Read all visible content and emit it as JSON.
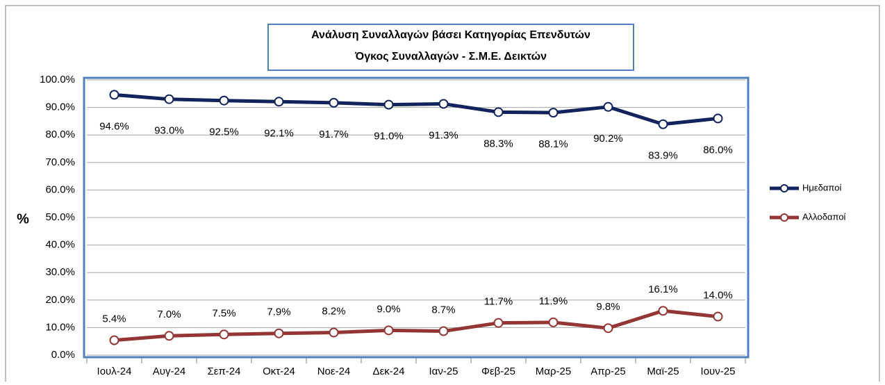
{
  "chart_data": {
    "type": "line",
    "title": "Ανάλυση Συναλλαγών βάσει Κατηγορίας Επενδυτών",
    "subtitle": "Όγκος Συναλλαγών - Σ.Μ.Ε. Δεικτών",
    "y_label": "%",
    "categories": [
      "Ιουλ-24",
      "Αυγ-24",
      "Σεπ-24",
      "Οκτ-24",
      "Νοε-24",
      "Δεκ-24",
      "Ιαν-25",
      "Φεβ-25",
      "Μαρ-25",
      "Απρ-25",
      "Μαϊ-25",
      "Ιουν-25"
    ],
    "series": [
      {
        "name": "Ημεδαποί",
        "color": "#12235e",
        "values": [
          94.6,
          93.0,
          92.5,
          92.1,
          91.7,
          91.0,
          91.3,
          88.3,
          88.1,
          90.2,
          83.9,
          86.0
        ],
        "value_labels": [
          "94.6%",
          "93.0%",
          "92.5%",
          "92.1%",
          "91.7%",
          "91.0%",
          "91.3%",
          "88.3%",
          "88.1%",
          "90.2%",
          "83.9%",
          "86.0%"
        ]
      },
      {
        "name": "Αλλοδαποί",
        "color": "#943634",
        "values": [
          5.4,
          7.0,
          7.5,
          7.9,
          8.2,
          9.0,
          8.7,
          11.7,
          11.9,
          9.8,
          16.1,
          14.0
        ],
        "value_labels": [
          "5.4%",
          "7.0%",
          "7.5%",
          "7.9%",
          "8.2%",
          "9.0%",
          "8.7%",
          "11.7%",
          "11.9%",
          "9.8%",
          "16.1%",
          "14.0%"
        ]
      }
    ],
    "ylim": [
      0,
      100
    ],
    "yticks": [
      {
        "value": 0,
        "label": "0.0%"
      },
      {
        "value": 10,
        "label": "10.0%"
      },
      {
        "value": 20,
        "label": "20.0%"
      },
      {
        "value": 30,
        "label": "30.0%"
      },
      {
        "value": 40,
        "label": "40.0%"
      },
      {
        "value": 50,
        "label": "50.0%"
      },
      {
        "value": 60,
        "label": "60.0%"
      },
      {
        "value": 70,
        "label": "70.0%"
      },
      {
        "value": 80,
        "label": "80.0%"
      },
      {
        "value": 90,
        "label": "90.0%"
      },
      {
        "value": 100,
        "label": "100.0%"
      }
    ],
    "grid": true,
    "legend": "right"
  }
}
